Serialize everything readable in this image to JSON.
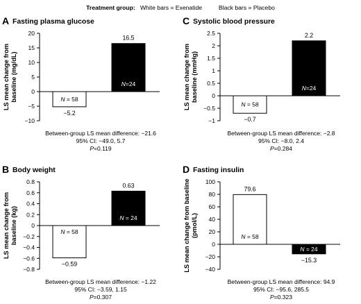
{
  "legend": {
    "heading": "Treatment group:",
    "white": "White bars = Exenatide",
    "black": "Black bars = Placebo",
    "colors": {
      "exenatide": "#ffffff",
      "placebo": "#000000"
    }
  },
  "chart_data": [
    {
      "id": "A",
      "letter": "A",
      "title": "Fasting plasma glucose",
      "type": "bar",
      "ylabel_lines": [
        "LS mean change from",
        "baseline (mg/dL)"
      ],
      "ylim": [
        -10,
        20
      ],
      "yticks": [
        -10,
        -5,
        0,
        5,
        10,
        15,
        20
      ],
      "grid": false,
      "series": [
        {
          "value": -5.2,
          "value_label": "−5.2",
          "n_label": "N = 58",
          "fill": "#ffffff"
        },
        {
          "value": 16.5,
          "value_label": "16.5",
          "n_label": "N=24",
          "fill": "#000000"
        }
      ],
      "stats": {
        "difference": "Between-group LS mean difference: −21.6",
        "ci": "95% CI: −49.0, 5.7",
        "p_prefix": "P",
        "p_value": "=0.119"
      }
    },
    {
      "id": "C",
      "letter": "C",
      "title": "Systolic blood pressure",
      "type": "bar",
      "ylabel_lines": [
        "LS mean change from",
        "baseline (mmHg)"
      ],
      "ylim": [
        -1,
        2.5
      ],
      "yticks": [
        -1,
        -0.5,
        0,
        0.5,
        1,
        1.5,
        2,
        2.5
      ],
      "grid": false,
      "series": [
        {
          "value": -0.7,
          "value_label": "−0.7",
          "n_label": "N = 58",
          "fill": "#ffffff"
        },
        {
          "value": 2.2,
          "value_label": "2.2",
          "n_label": "N=24",
          "fill": "#000000"
        }
      ],
      "stats": {
        "difference": "Between-group LS mean difference: −2.8",
        "ci": "95% CI: −8.0, 2.4",
        "p_prefix": "P",
        "p_value": "=0.284"
      }
    },
    {
      "id": "B",
      "letter": "B",
      "title": "Body weight",
      "type": "bar",
      "ylabel_lines": [
        "LS mean change from",
        "baseline (kg)"
      ],
      "ylim": [
        -0.8,
        0.8
      ],
      "yticks": [
        -0.8,
        -0.6,
        -0.4,
        -0.2,
        0,
        0.2,
        0.4,
        0.6,
        0.8
      ],
      "grid": false,
      "series": [
        {
          "value": -0.59,
          "value_label": "−0.59",
          "n_label": "N = 58",
          "fill": "#ffffff"
        },
        {
          "value": 0.63,
          "value_label": "0.63",
          "n_label": "N = 24",
          "fill": "#000000"
        }
      ],
      "stats": {
        "difference": "Between-group LS mean difference: −1.22",
        "ci": "95% CI: −3.59, 1.15",
        "p_prefix": "P",
        "p_value": "=0.307"
      }
    },
    {
      "id": "D",
      "letter": "D",
      "title": "Fasting insulin",
      "type": "bar",
      "ylabel_lines": [
        "LS mean change from baseline",
        "(pmol/L)"
      ],
      "ylim": [
        -40,
        100
      ],
      "yticks": [
        -40,
        -20,
        0,
        20,
        40,
        60,
        80,
        100
      ],
      "grid": false,
      "series": [
        {
          "value": 79.6,
          "value_label": "79.6",
          "n_label": "N = 58",
          "fill": "#ffffff"
        },
        {
          "value": -15.3,
          "value_label": "−15.3",
          "n_label": "N = 24",
          "fill": "#000000"
        }
      ],
      "stats": {
        "difference": "Between-group LS mean difference: 94.9",
        "ci": "95% CI: −95.6, 285.5",
        "p_prefix": "P",
        "p_value": "=0.323"
      }
    }
  ]
}
